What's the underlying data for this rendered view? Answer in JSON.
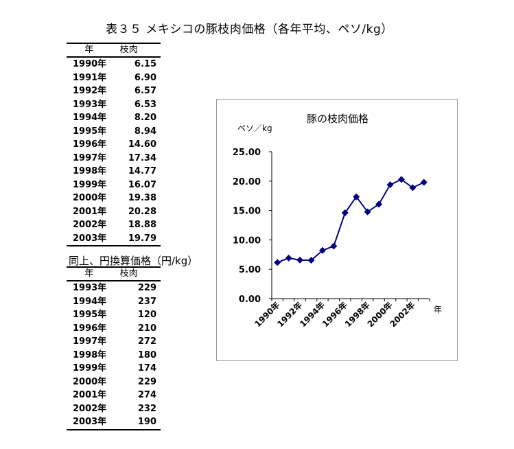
{
  "title": "表３５ メキシコの豚枝肉価格（各年平均、ペソ/kg）",
  "table1": {
    "headers": [
      "年",
      "枝肉"
    ],
    "rows": [
      [
        "1990年",
        "6.15"
      ],
      [
        "1991年",
        "6.90"
      ],
      [
        "1992年",
        "6.57"
      ],
      [
        "1993年",
        "6.53"
      ],
      [
        "1994年",
        "8.20"
      ],
      [
        "1995年",
        "8.94"
      ],
      [
        "1996年",
        "14.60"
      ],
      [
        "1997年",
        "17.34"
      ],
      [
        "1998年",
        "14.77"
      ],
      [
        "1999年",
        "16.07"
      ],
      [
        "2000年",
        "19.38"
      ],
      [
        "2001年",
        "20.28"
      ],
      [
        "2002年",
        "18.88"
      ],
      [
        "2003年",
        "19.79"
      ]
    ]
  },
  "table2": {
    "title": "同上、円換算価格（円/kg）",
    "headers": [
      "年",
      "枝肉"
    ],
    "rows": [
      [
        "1993年",
        "229"
      ],
      [
        "1994年",
        "237"
      ],
      [
        "1995年",
        "120"
      ],
      [
        "1996年",
        "210"
      ],
      [
        "1997年",
        "272"
      ],
      [
        "1998年",
        "180"
      ],
      [
        "1999年",
        "174"
      ],
      [
        "2000年",
        "229"
      ],
      [
        "2001年",
        "274"
      ],
      [
        "2002年",
        "232"
      ],
      [
        "2003年",
        "190"
      ]
    ]
  },
  "chart_data": {
    "type": "line",
    "title": "豚の枝肉価格",
    "ylabel": "ペソ／kg",
    "xlabel": "年",
    "x": [
      1990,
      1991,
      1992,
      1993,
      1994,
      1995,
      1996,
      1997,
      1998,
      1999,
      2000,
      2001,
      2002,
      2003
    ],
    "x_tick_labels": [
      "1990年",
      "1992年",
      "1994年",
      "1996年",
      "1998年",
      "2000年",
      "2002年"
    ],
    "series": [
      {
        "values": [
          6.15,
          6.9,
          6.57,
          6.53,
          8.2,
          8.94,
          14.6,
          17.34,
          14.77,
          16.07,
          19.38,
          20.28,
          18.88,
          19.79
        ]
      }
    ],
    "y_ticks": [
      "0.00",
      "5.00",
      "10.00",
      "15.00",
      "20.00",
      "25.00"
    ],
    "ylim": [
      0,
      25
    ],
    "grid": false,
    "legend": "none",
    "line_color": "#000080"
  }
}
